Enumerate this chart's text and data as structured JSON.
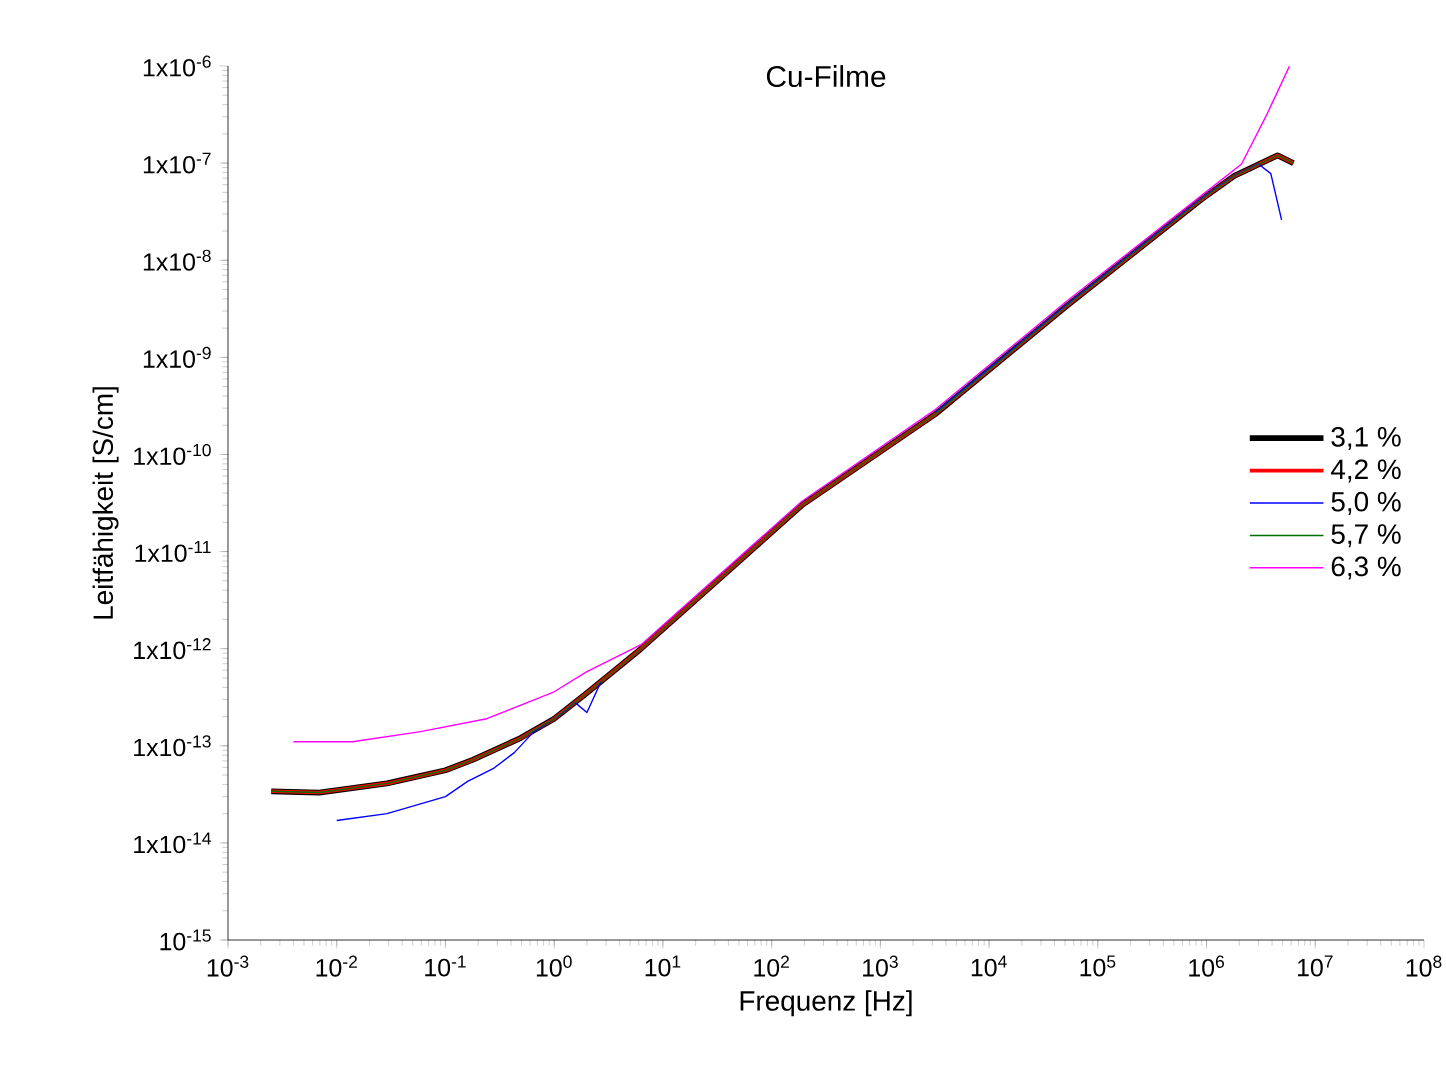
{
  "chart_data": {
    "type": "line",
    "title": "Cu-Filme",
    "xlabel": "Frequenz [Hz]",
    "ylabel": "Leitfähigkeit [S/cm]",
    "log": "xy",
    "legend": "right",
    "marker": "none",
    "line_style": "solid",
    "xlim": [
      0.001,
      100000000
    ],
    "ylim": [
      1e-15,
      1e-06
    ],
    "xticks": [
      {
        "value": 0.001,
        "label": "10$^{-3}$"
      },
      {
        "value": 0.01,
        "label": "10$^{-2}$"
      },
      {
        "value": 0.1,
        "label": "10$^{-1}$"
      },
      {
        "value": 1,
        "label": "10$^{0}$"
      },
      {
        "value": 10,
        "label": "10$^{1}$"
      },
      {
        "value": 100,
        "label": "10$^{2}$"
      },
      {
        "value": 1000,
        "label": "10$^{3}$"
      },
      {
        "value": 10000,
        "label": "10$^{4}$"
      },
      {
        "value": 100000,
        "label": "10$^{5}$"
      },
      {
        "value": 1000000,
        "label": "10$^{6}$"
      },
      {
        "value": 10000000,
        "label": "10$^{7}$"
      },
      {
        "value": 100000000,
        "label": "10$^{8}$"
      }
    ],
    "yticks": [
      {
        "value": 1e-15,
        "label": "10$^{-15}$"
      },
      {
        "value": 1e-14,
        "label": "1x10$^{-14}$"
      },
      {
        "value": 1e-13,
        "label": "1x10$^{-13}$"
      },
      {
        "value": 1e-12,
        "label": "1x10$^{-12}$"
      },
      {
        "value": 1e-11,
        "label": "1x10$^{-11}$"
      },
      {
        "value": 1e-10,
        "label": "1x10$^{-10}$"
      },
      {
        "value": 1e-09,
        "label": "1x10$^{-9}$"
      },
      {
        "value": 1e-08,
        "label": "1x10$^{-8}$"
      },
      {
        "value": 1e-07,
        "label": "1x10$^{-7}$"
      },
      {
        "value": 1e-06,
        "label": "1x10$^{-6}$"
      }
    ],
    "series": [
      {
        "name": "3,1 %",
        "color": "#000000",
        "x": [
          0.0025,
          0.0069,
          0.029,
          0.1,
          0.18,
          0.49,
          1,
          2.0,
          6.3,
          190,
          3200,
          52000,
          890000,
          1800000,
          4500000,
          6300000
        ],
        "values": [
          3.4e-14,
          3.3e-14,
          4.1e-14,
          5.6e-14,
          7.2e-14,
          1.2e-13,
          1.9e-13,
          3.5e-13,
          1e-12,
          3e-11,
          2.6e-10,
          3.4e-09,
          4.2e-08,
          7.4e-08,
          1.2e-07,
          1e-07
        ]
      },
      {
        "name": "4,2 %",
        "color": "#ff0000",
        "x": [
          0.0025,
          0.0069,
          0.029,
          0.1,
          0.18,
          0.49,
          1,
          2.0,
          6.3,
          190,
          3200,
          52000,
          890000,
          1800000,
          4500000,
          6300000
        ],
        "values": [
          3.4e-14,
          3.3e-14,
          4.1e-14,
          5.6e-14,
          7.2e-14,
          1.2e-13,
          1.9e-13,
          3.5e-13,
          1e-12,
          3e-11,
          2.6e-10,
          3.4e-09,
          4.2e-08,
          7.4e-08,
          1.2e-07,
          1e-07
        ]
      },
      {
        "name": "5,0 %",
        "color": "#0000ff",
        "x": [
          0.01,
          0.029,
          0.1,
          0.16,
          0.28,
          0.43,
          0.65,
          1.15,
          1.55,
          2.0,
          2.7,
          6.3,
          190,
          3200,
          52000,
          890000,
          1800000,
          3000000,
          3900000,
          4900000
        ],
        "values": [
          1.7e-14,
          2e-14,
          3e-14,
          4.3e-14,
          5.9e-14,
          8.5e-14,
          1.4e-13,
          2.1e-13,
          2.8e-13,
          2.2e-13,
          4.6e-13,
          null,
          null,
          2.7e-10,
          3.5e-09,
          4.3e-08,
          7.5e-08,
          9.8e-08,
          7.8e-08,
          2.6e-08
        ]
      },
      {
        "name": "5,7 %",
        "color": "#007000",
        "x": [
          0.0025,
          0.0069,
          0.029,
          0.1,
          0.18,
          0.49,
          1,
          2.0,
          6.3,
          190,
          3200,
          52000,
          890000,
          1800000,
          4500000,
          6300000
        ],
        "values": [
          3.4e-14,
          3.3e-14,
          4.1e-14,
          5.6e-14,
          7.2e-14,
          1.2e-13,
          1.9e-13,
          3.5e-13,
          1e-12,
          3e-11,
          2.6e-10,
          3.4e-09,
          4.2e-08,
          7.4e-08,
          1.2e-07,
          1e-07
        ]
      },
      {
        "name": "6,3 %",
        "color": "#ff00ff",
        "x": [
          0.004,
          0.014,
          0.059,
          0.24,
          1,
          2.0,
          6.3,
          190,
          3200,
          52000,
          890000,
          2100000,
          3600000,
          5800000
        ],
        "values": [
          1.1e-13,
          1.1e-13,
          1.4e-13,
          1.9e-13,
          3.6e-13,
          5.8e-13,
          1.1e-12,
          3.3e-11,
          2.9e-10,
          3.8e-09,
          4.6e-08,
          9.8e-08,
          3.2e-07,
          1e-06
        ]
      }
    ]
  }
}
